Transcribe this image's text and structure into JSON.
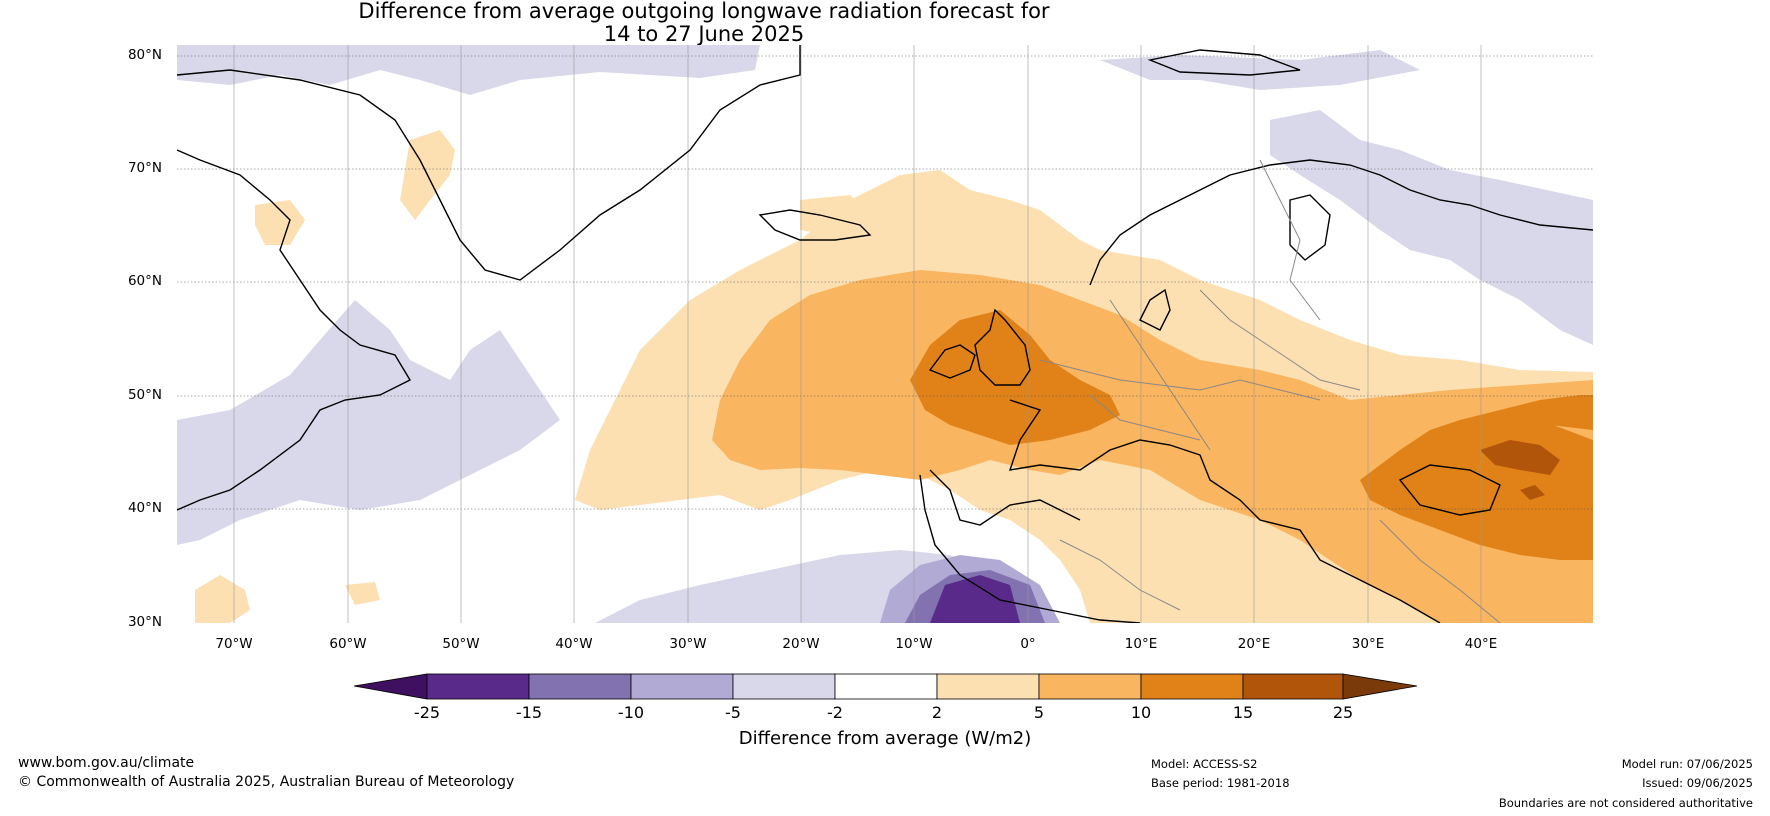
{
  "title": {
    "line1": "Difference from average outgoing longwave radiation forecast for",
    "line2": "14 to 27 June 2025"
  },
  "map": {
    "lat_labels": [
      "80°N",
      "70°N",
      "60°N",
      "50°N",
      "40°N",
      "30°N"
    ],
    "lon_labels": [
      "70°W",
      "60°W",
      "50°W",
      "40°W",
      "30°W",
      "20°W",
      "10°W",
      "0°",
      "10°E",
      "20°E",
      "30°E",
      "40°E"
    ],
    "lat_range": [
      30,
      81
    ],
    "lon_range": [
      -75,
      50
    ],
    "colors": {
      "c_m25": "#3f1060",
      "c_m15": "#5a2a8a",
      "c_m10": "#8272b0",
      "c_m5": "#b0aad4",
      "c_m2": "#d8d8ea",
      "c_2": "#ffffff",
      "c_5": "#fde0b2",
      "c_10": "#f9b55f",
      "c_15": "#e08218",
      "c_25": "#b0550a",
      "c_over": "#7a3a0a",
      "coast": "#000000",
      "border": "#888888"
    }
  },
  "colorbar": {
    "ticks": [
      "-25",
      "-15",
      "-10",
      "-5",
      "-2",
      "2",
      "5",
      "10",
      "15",
      "25"
    ],
    "label": "Difference from average (W/m2)"
  },
  "footer": {
    "website": "www.bom.gov.au/climate",
    "copyright": "© Commonwealth of Australia 2025, Australian Bureau of Meteorology",
    "model": "Model: ACCESS-S2",
    "base_period": "Base period: 1981-2018",
    "model_run": "Model run: 07/06/2025",
    "issued": "Issued: 09/06/2025",
    "disclaimer": "Boundaries are not considered authoritative"
  }
}
